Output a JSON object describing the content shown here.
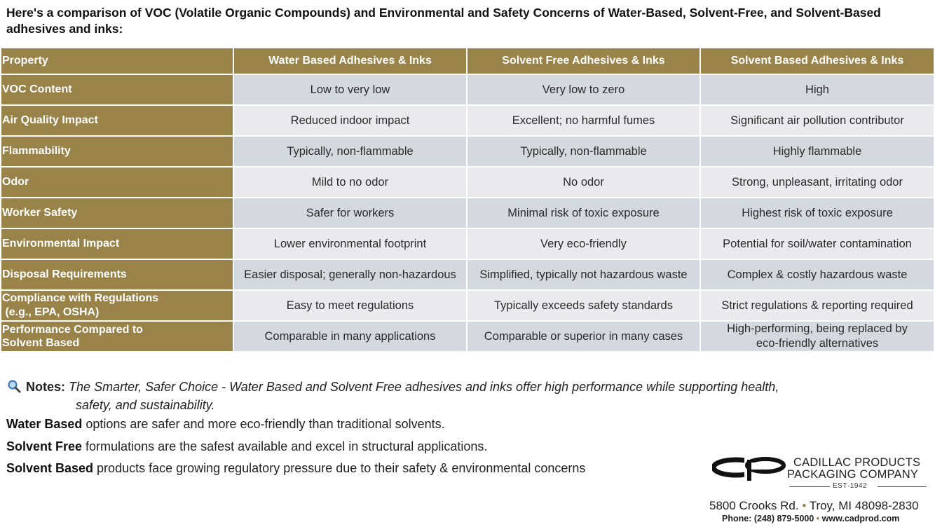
{
  "intro": "Here's a comparison of VOC (Volatile Organic Compounds) and Environmental and Safety Concerns of Water-Based, Solvent-Free, and Solvent-Based adhesives and inks:",
  "table": {
    "headers": [
      "Property",
      "Water Based Adhesives & Inks",
      "Solvent Free Adhesives & Inks",
      "Solvent Based Adhesives & Inks"
    ],
    "rows": [
      {
        "property": "VOC Content",
        "water": "Low to very low",
        "free": "Very low to zero",
        "solvent": "High"
      },
      {
        "property": "Air Quality Impact",
        "water": "Reduced indoor impact",
        "free": "Excellent; no harmful fumes",
        "solvent": "Significant air pollution contributor"
      },
      {
        "property": "Flammability",
        "water": "Typically, non-flammable",
        "free": "Typically, non-flammable",
        "solvent": "Highly flammable"
      },
      {
        "property": "Odor",
        "water": "Mild to no odor",
        "free": "No odor",
        "solvent": "Strong, unpleasant, irritating odor"
      },
      {
        "property": "Worker Safety",
        "water": "Safer for workers",
        "free": "Minimal risk of toxic exposure",
        "solvent": "Highest risk of toxic exposure"
      },
      {
        "property": "Environmental Impact",
        "water": "Lower environmental footprint",
        "free": "Very eco-friendly",
        "solvent": "Potential for soil/water contamination"
      },
      {
        "property": "Disposal Requirements",
        "water": "Easier disposal; generally non-hazardous",
        "free": "Simplified, typically not hazardous waste",
        "solvent": "Complex & costly hazardous waste"
      },
      {
        "property": "Compliance with Regulations",
        "property2": " (e.g., EPA, OSHA)",
        "water": "Easy to meet regulations",
        "free": "Typically exceeds safety standards",
        "solvent": "Strict regulations & reporting required"
      },
      {
        "property": "Performance Compared to",
        "property2": "Solvent Based",
        "water": "Comparable in many applications",
        "free": "Comparable or superior in many cases",
        "solvent": "High-performing, being replaced by",
        "solvent2": "eco-friendly alternatives"
      }
    ]
  },
  "notes": {
    "label": "Notes:",
    "text": "The Smarter, Safer Choice - Water Based and Solvent Free adhesives and inks offer high performance while supporting health,",
    "text2": "safety, and sustainability."
  },
  "facts": [
    {
      "bold": "Water Based",
      "rest": " options are safer and more eco-friendly than traditional solvents."
    },
    {
      "bold": "Solvent Free",
      "rest": " formulations are the safest available and excel in structural applications."
    },
    {
      "bold": "Solvent Based",
      "rest": " products face growing regulatory pressure due to their safety & environmental concerns"
    }
  ],
  "company": {
    "line1": "CADILLAC PRODUCTS",
    "line2": "PACKAGING COMPANY",
    "est": "EST·1942",
    "street": "5800 Crooks Rd.",
    "city": "Troy, MI 48098-2830",
    "phone": "Phone: (248) 879-5000",
    "web": "www.cadprod.com",
    "sep": "•"
  },
  "colors": {
    "header_gold": "#9a8349",
    "row_dark": "#d4d8df",
    "row_light": "#e8eaed"
  },
  "icons": {
    "notes": "magnifying-glass-icon"
  }
}
